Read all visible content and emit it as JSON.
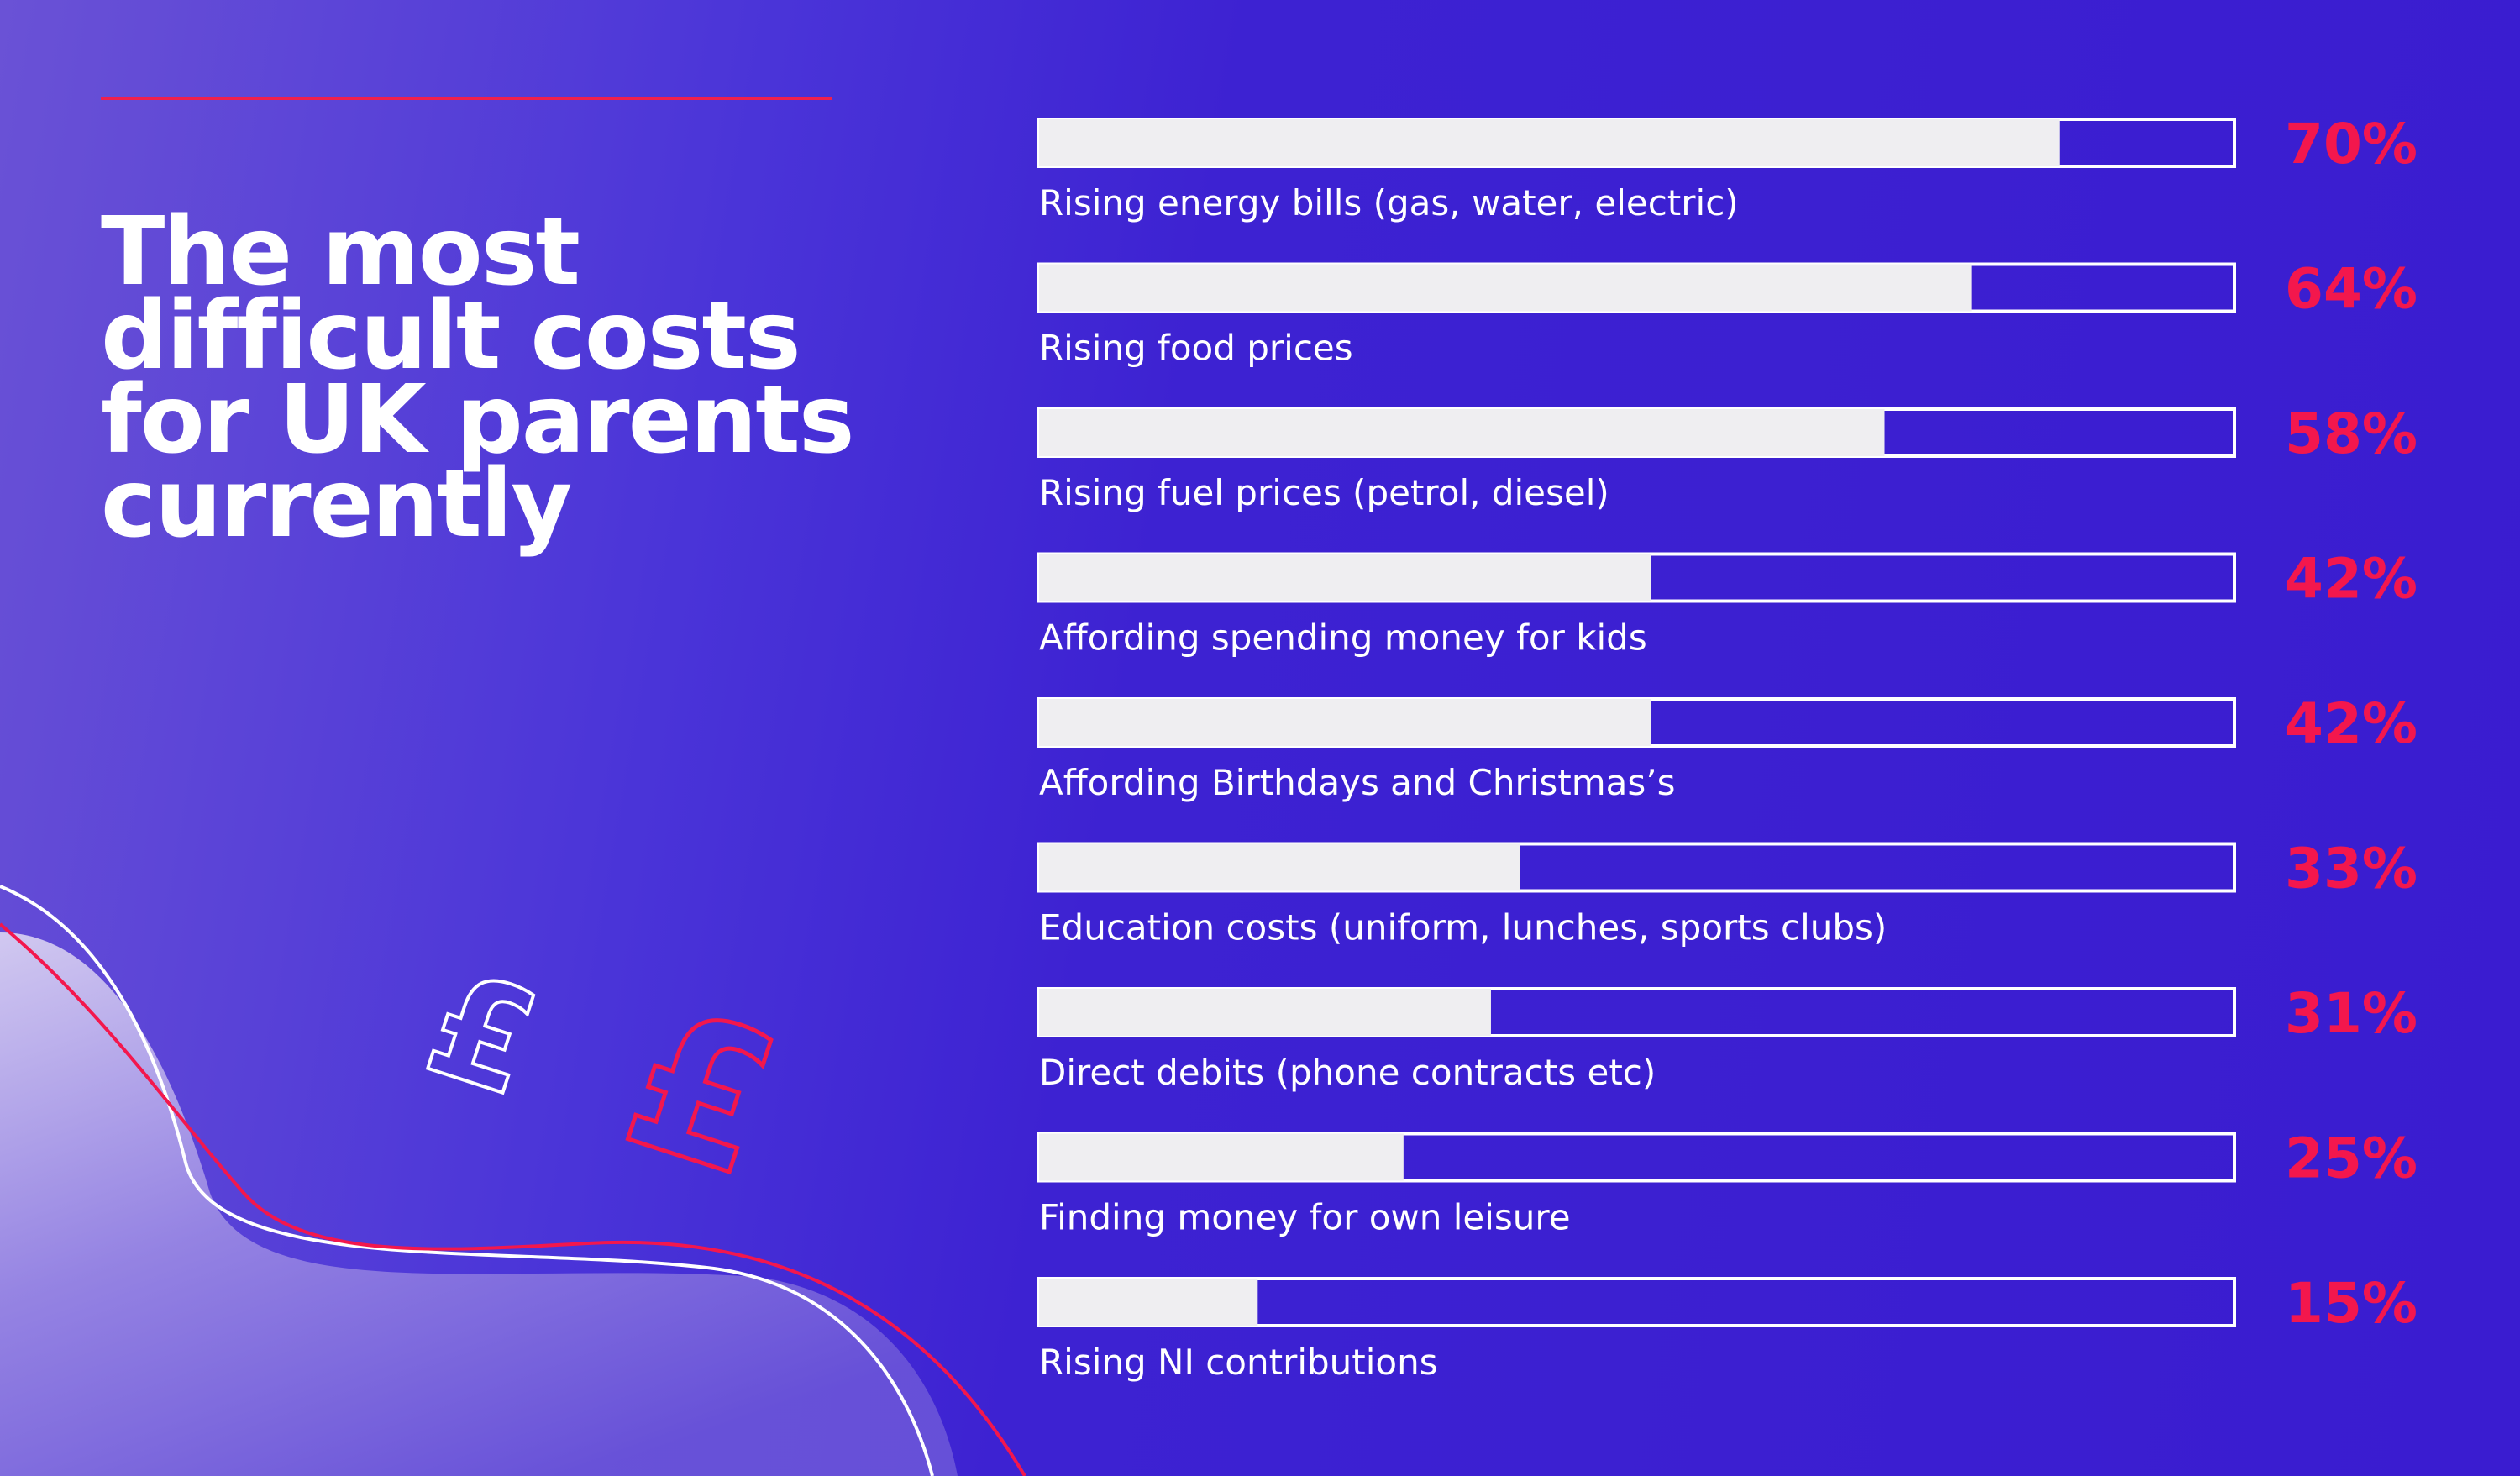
{
  "colors": {
    "accent": "#f3174d",
    "bar_fill": "#efeef1",
    "bar_outline": "#ffffff",
    "background": "#3d22d2"
  },
  "icons": [
    "pound-sign-outline-icon",
    "pound-sign-outline-icon"
  ],
  "chart_data": {
    "type": "bar",
    "orientation": "horizontal",
    "title": "The most difficult costs for UK parents currently",
    "categories": [
      "Rising energy bills (gas, water, electric)",
      "Rising food prices",
      "Rising fuel prices (petrol, diesel)",
      "Affording spending money for kids",
      "Affording Birthdays and Christmas’s",
      "Education costs (uniform, lunches, sports clubs)",
      "Direct debits (phone contracts etc)",
      "Finding money for own leisure",
      "Rising NI contributions"
    ],
    "values": [
      70,
      64,
      58,
      42,
      42,
      33,
      31,
      25,
      15
    ],
    "value_labels": [
      "70%",
      "64%",
      "58%",
      "42%",
      "42%",
      "33%",
      "31%",
      "25%",
      "15%"
    ],
    "xlim": [
      0,
      82
    ],
    "grid": false,
    "legend": "none"
  }
}
